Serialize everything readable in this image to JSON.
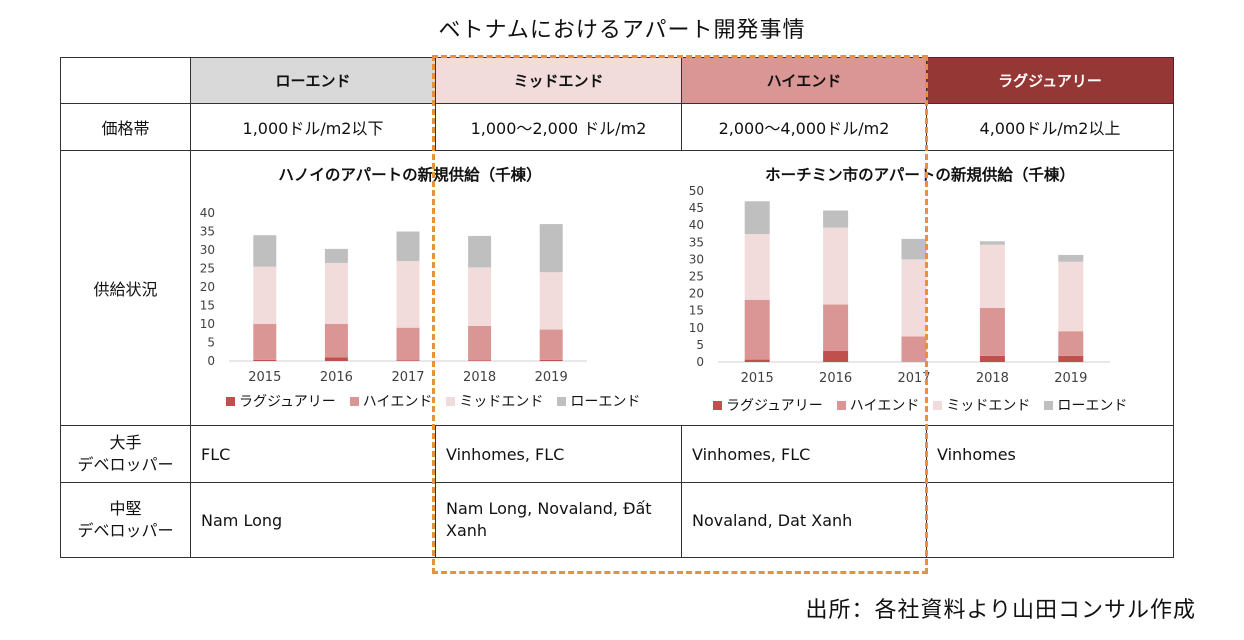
{
  "title": "ベトナムにおけるアパート開発事情",
  "source": "出所：各社資料より山田コンサル作成",
  "segments": [
    {
      "label": "ローエンド",
      "color": "#d9d9d9",
      "text_color": "#111111"
    },
    {
      "label": "ミッドエンド",
      "color": "#f2dcdb",
      "text_color": "#111111"
    },
    {
      "label": "ハイエンド",
      "color": "#da9694",
      "text_color": "#111111"
    },
    {
      "label": "ラグジュアリー",
      "color": "#953735",
      "text_color": "#ffffff"
    }
  ],
  "rows": {
    "price": {
      "label": "価格帯",
      "values": [
        "1,000ドル/m2以下",
        "1,000～2,000 ドル/m2",
        "2,000～4,000ドル/m2",
        "4,000ドル/m2以上"
      ]
    },
    "supply": {
      "label": "供給状況"
    },
    "large_dev": {
      "label_line1": "大手",
      "label_line2": "デベロッパー",
      "values": [
        "FLC",
        "Vinhomes, FLC",
        "Vinhomes, FLC",
        "Vinhomes"
      ]
    },
    "mid_dev": {
      "label_line1": "中堅",
      "label_line2": "デベロッパー",
      "values": [
        "Nam Long",
        "Nam Long, Novaland, Đất Xanh",
        "Novaland, Dat Xanh",
        ""
      ]
    }
  },
  "chart_colors": {
    "luxury": "#c0504d",
    "high": "#da9694",
    "mid": "#f2dcdb",
    "low": "#bfbfbf"
  },
  "chart_data": [
    {
      "type": "bar",
      "stacked": true,
      "title": "ハノイのアパートの新規供給（千棟）",
      "categories": [
        "2015",
        "2016",
        "2017",
        "2018",
        "2019"
      ],
      "ylim": [
        0,
        40
      ],
      "yticks": [
        0,
        5,
        10,
        15,
        20,
        25,
        30,
        35,
        40
      ],
      "series": [
        {
          "name": "ラグジュアリー",
          "values": [
            0.3,
            1.0,
            0.2,
            0.2,
            0.3
          ]
        },
        {
          "name": "ハイエンド",
          "values": [
            9.7,
            9.0,
            8.8,
            9.3,
            8.2
          ]
        },
        {
          "name": "ミッドエンド",
          "values": [
            15.5,
            16.5,
            18.0,
            15.8,
            15.5
          ]
        },
        {
          "name": "ローエンド",
          "values": [
            8.5,
            3.8,
            8.0,
            8.5,
            13.0
          ]
        }
      ]
    },
    {
      "type": "bar",
      "stacked": true,
      "title": "ホーチミン市のアパートの新規供給（千棟）",
      "categories": [
        "2015",
        "2016",
        "2017",
        "2018",
        "2019"
      ],
      "ylim": [
        0,
        50
      ],
      "yticks": [
        0,
        5,
        10,
        15,
        20,
        25,
        30,
        35,
        40,
        45,
        50
      ],
      "series": [
        {
          "name": "ラグジュアリー",
          "values": [
            0.7,
            3.3,
            0,
            1.8,
            1.8
          ]
        },
        {
          "name": "ハイエンド",
          "values": [
            17.5,
            13.5,
            7.5,
            14.0,
            7.2
          ]
        },
        {
          "name": "ミッドエンド",
          "values": [
            19.2,
            22.5,
            22.5,
            18.5,
            20.3
          ]
        },
        {
          "name": "ローエンド",
          "values": [
            9.6,
            5.0,
            6.0,
            1.0,
            2.0
          ]
        }
      ]
    }
  ]
}
